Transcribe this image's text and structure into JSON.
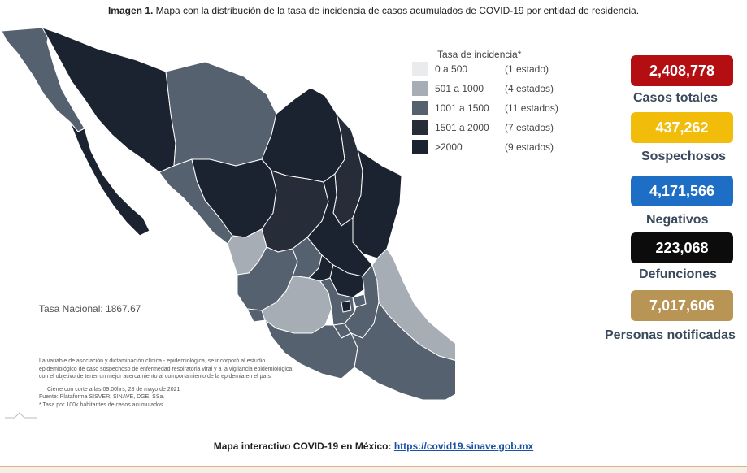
{
  "caption": {
    "prefix": "Imagen 1.",
    "text": "Mapa con la distribución de la tasa de incidencia de casos acumulados de COVID-19 por entidad de residencia."
  },
  "legend": {
    "title": "Tasa de incidencia*",
    "items": [
      {
        "range": "0 a   500",
        "count": "(1 estado)",
        "color": "#e9ebed"
      },
      {
        "range": "501 a  1000",
        "count": "(4 estados)",
        "color": "#a7adb5"
      },
      {
        "range": "1001 a  1500",
        "count": "(11 estados)",
        "color": "#566170"
      },
      {
        "range": "1501 a  2000",
        "count": "(7 estados)",
        "color": "#262d38"
      },
      {
        "range": ">2000",
        "count": "(9 estados)",
        "color": "#1b2330"
      }
    ]
  },
  "national_rate": "Tasa Nacional: 1867.67",
  "notes": {
    "line1": "La variable de asociación y dictaminación clínica - epidemiológica, se incorporó al estudio",
    "line2": "epidemiológico de caso sospechoso de enfermedad respiratoria viral y a la vigilancia epidemiológica",
    "line3": "con el objetivo de tener un mejor acercamiento al comportamiento de la epidemia en el país.",
    "line4": "Cierre con corte a las 09:00hrs, 28 de mayo de 2021",
    "line5": "Fuente: Plataforma SISVER, SINAVE, DGE, SSa.",
    "line6": "* Tasa por 100k habitantes de casos acumulados."
  },
  "stats": [
    {
      "value": "2,408,778",
      "label": "Casos totales",
      "color": "#b40d12"
    },
    {
      "value": "437,262",
      "label": "Sospechosos",
      "color": "#f2bc0a"
    },
    {
      "value": "4,171,566",
      "label": "Negativos",
      "color": "#1d6ec4"
    },
    {
      "value": "223,068",
      "label": "Defunciones",
      "color": "#0c0c0c"
    },
    {
      "value": "7,017,606",
      "label": "Personas notificadas",
      "color": "#b89455"
    }
  ],
  "footer": {
    "label": "Mapa interactivo COVID-19 en México:",
    "link": "https://covid19.sinave.gob.mx"
  }
}
